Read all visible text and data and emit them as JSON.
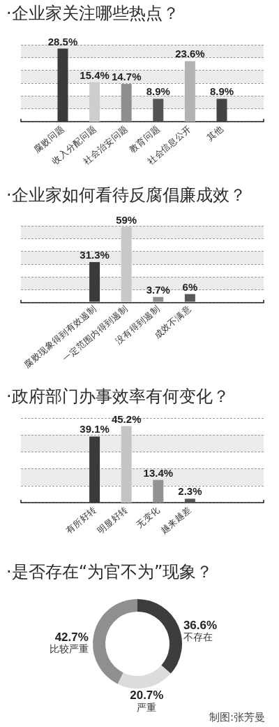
{
  "chart_data": [
    {
      "type": "bar",
      "title": "·企业家关注哪些热点？",
      "categories": [
        "腐败问题",
        "收入分配问题",
        "社会治安问题",
        "教育问题",
        "社会信息公开",
        "其他"
      ],
      "values": [
        28.5,
        15.4,
        14.7,
        8.9,
        23.6,
        8.9
      ],
      "colors": [
        "#3b3b3b",
        "#cdcdcd",
        "#8e8e8e",
        "#545454",
        "#b2b2b2",
        "#444444"
      ],
      "value_labels": [
        "28.5%",
        "15.4%",
        "14.7%",
        "8.9%",
        "23.6%",
        "8.9%"
      ],
      "ylim": [
        0,
        30
      ],
      "yticks": [
        {
          "value": 0,
          "label": null
        },
        {
          "value": 5,
          "label": null
        },
        {
          "value": 10,
          "label": null
        },
        {
          "value": 15,
          "label": null
        },
        {
          "value": 20,
          "label": null
        },
        {
          "value": 25,
          "label": null
        },
        {
          "value": 30,
          "label": null
        }
      ],
      "grid": "y",
      "tick_labels": "x"
    },
    {
      "type": "bar",
      "title": "·企业家如何看待反腐倡廉成效？",
      "categories": [
        "腐败现象得到有效遏制",
        "一定范围内得到遏制",
        "没有得到遏制",
        "成效不满意"
      ],
      "values": [
        31.3,
        59,
        3.7,
        6
      ],
      "colors": [
        "#3a3a3a",
        "#c8c8c8",
        "#909090",
        "#5a5a5a"
      ],
      "value_labels": [
        "31.3%",
        "59%",
        "3.7%",
        "6%"
      ],
      "ylim": [
        0,
        60
      ],
      "yticks": [
        {
          "value": 0,
          "label": null
        },
        {
          "value": 10,
          "label": null
        },
        {
          "value": 20,
          "label": null
        },
        {
          "value": 30,
          "label": null
        },
        {
          "value": 40,
          "label": null
        },
        {
          "value": 50,
          "label": null
        },
        {
          "value": 60,
          "label": null
        }
      ],
      "grid": "y",
      "tick_labels": "x"
    },
    {
      "type": "bar",
      "title": "·政府部门办事效率有何变化？",
      "categories": [
        "有所好转",
        "明显好转",
        "无变化",
        "越来越差"
      ],
      "values": [
        39.1,
        45.2,
        13.4,
        2.3
      ],
      "colors": [
        "#3a3a3a",
        "#c4c4c4",
        "#929292",
        "#555555"
      ],
      "value_labels": [
        "39.1%",
        "45.2%",
        "13.4%",
        "2.3%"
      ],
      "ylim": [
        0,
        50
      ],
      "yticks": [
        {
          "value": 0,
          "label": null
        },
        {
          "value": 10,
          "label": null
        },
        {
          "value": 20,
          "label": null
        },
        {
          "value": 30,
          "label": null
        },
        {
          "value": 40,
          "label": null
        },
        {
          "value": 50,
          "label": null
        }
      ],
      "grid": "y",
      "tick_labels": "x"
    },
    {
      "type": "donut",
      "title": "·是否存在“为官不为”现象？",
      "categories": [
        "不存在",
        "严重",
        "比较严重"
      ],
      "values": [
        36.6,
        20.7,
        42.7
      ],
      "colors": [
        "#3d3d3d",
        "#dcdcdc",
        "#8f8f8f"
      ],
      "value_labels": [
        "36.6%",
        "20.7%",
        "42.7%"
      ],
      "annotations": [
        "制图:张芳曼"
      ]
    }
  ]
}
